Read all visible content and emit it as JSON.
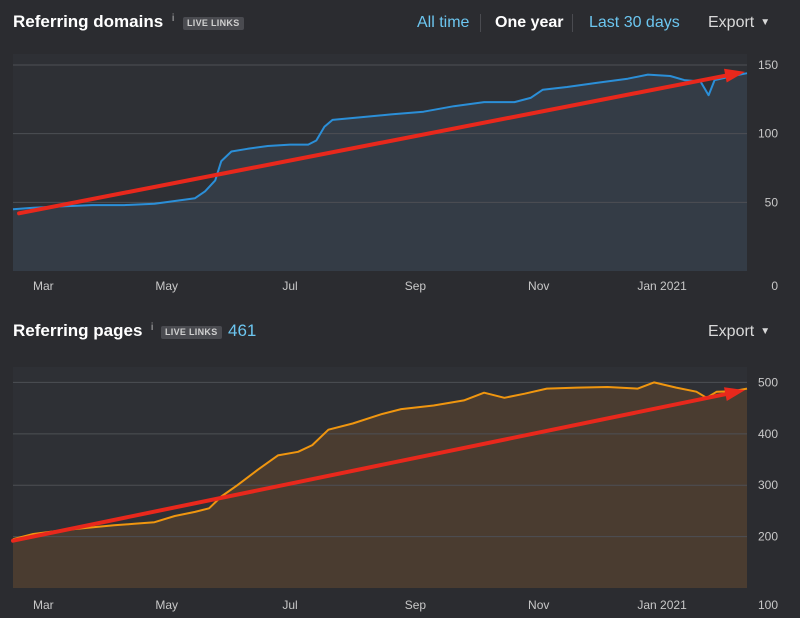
{
  "panels": {
    "domains": {
      "title": "Referring domains",
      "info": "i",
      "badge": "LIVE LINKS",
      "count": "",
      "ranges": [
        "All time",
        "One year",
        "Last 30 days"
      ],
      "active_range": "One year",
      "export_label": "Export"
    },
    "pages": {
      "title": "Referring pages",
      "info": "i",
      "badge": "LIVE LINKS",
      "count": "461",
      "export_label": "Export"
    }
  },
  "chart_data": [
    {
      "type": "area",
      "title": "Referring domains",
      "x_ticks": [
        "Mar",
        "May",
        "Jul",
        "Sep",
        "Nov",
        "Jan 2021"
      ],
      "x_range": [
        "2020-02-15",
        "2021-02-12"
      ],
      "y_ticks": [
        0,
        50,
        100,
        150
      ],
      "ylim": [
        0,
        158
      ],
      "grid": true,
      "series": [
        {
          "color": "#2b8fd8",
          "fill": "#343c46",
          "points": [
            [
              "2020-02-15",
              45
            ],
            [
              "2020-02-25",
              46
            ],
            [
              "2020-03-10",
              47
            ],
            [
              "2020-03-25",
              48
            ],
            [
              "2020-04-10",
              48
            ],
            [
              "2020-04-25",
              49
            ],
            [
              "2020-05-05",
              51
            ],
            [
              "2020-05-15",
              53
            ],
            [
              "2020-05-20",
              58
            ],
            [
              "2020-05-25",
              66
            ],
            [
              "2020-05-28",
              80
            ],
            [
              "2020-06-02",
              87
            ],
            [
              "2020-06-10",
              89
            ],
            [
              "2020-06-20",
              91
            ],
            [
              "2020-07-01",
              92
            ],
            [
              "2020-07-10",
              92
            ],
            [
              "2020-07-14",
              95
            ],
            [
              "2020-07-18",
              105
            ],
            [
              "2020-07-22",
              110
            ],
            [
              "2020-08-05",
              112
            ],
            [
              "2020-08-20",
              114
            ],
            [
              "2020-09-05",
              116
            ],
            [
              "2020-09-20",
              120
            ],
            [
              "2020-10-05",
              123
            ],
            [
              "2020-10-20",
              123
            ],
            [
              "2020-10-28",
              126
            ],
            [
              "2020-11-03",
              132
            ],
            [
              "2020-11-15",
              134
            ],
            [
              "2020-11-30",
              137
            ],
            [
              "2020-12-15",
              140
            ],
            [
              "2020-12-25",
              143
            ],
            [
              "2021-01-05",
              142
            ],
            [
              "2021-01-12",
              139
            ],
            [
              "2021-01-20",
              138
            ],
            [
              "2021-01-24",
              128
            ],
            [
              "2021-01-27",
              139
            ],
            [
              "2021-02-05",
              142
            ],
            [
              "2021-02-12",
              144
            ]
          ]
        }
      ],
      "trend_arrow": {
        "color": "#e8281c",
        "from": [
          "2020-02-18",
          42
        ],
        "to": [
          "2021-02-11",
          145
        ]
      }
    },
    {
      "type": "area",
      "title": "Referring pages",
      "x_ticks": [
        "Mar",
        "May",
        "Jul",
        "Sep",
        "Nov",
        "Jan 2021"
      ],
      "x_range": [
        "2020-02-15",
        "2021-02-12"
      ],
      "y_ticks": [
        100,
        200,
        300,
        400,
        500
      ],
      "ylim": [
        100,
        530
      ],
      "grid": true,
      "series": [
        {
          "color": "#f0960f",
          "fill": "#4a3c30",
          "points": [
            [
              "2020-02-15",
              195
            ],
            [
              "2020-02-25",
              205
            ],
            [
              "2020-03-10",
              212
            ],
            [
              "2020-03-25",
              218
            ],
            [
              "2020-04-05",
              222
            ],
            [
              "2020-04-15",
              225
            ],
            [
              "2020-04-25",
              228
            ],
            [
              "2020-05-05",
              240
            ],
            [
              "2020-05-15",
              248
            ],
            [
              "2020-05-22",
              255
            ],
            [
              "2020-05-28",
              278
            ],
            [
              "2020-06-05",
              300
            ],
            [
              "2020-06-15",
              330
            ],
            [
              "2020-06-25",
              358
            ],
            [
              "2020-07-05",
              365
            ],
            [
              "2020-07-12",
              378
            ],
            [
              "2020-07-20",
              408
            ],
            [
              "2020-08-01",
              420
            ],
            [
              "2020-08-15",
              438
            ],
            [
              "2020-08-25",
              448
            ],
            [
              "2020-09-10",
              455
            ],
            [
              "2020-09-25",
              465
            ],
            [
              "2020-10-05",
              480
            ],
            [
              "2020-10-15",
              470
            ],
            [
              "2020-10-25",
              478
            ],
            [
              "2020-11-05",
              488
            ],
            [
              "2020-11-20",
              490
            ],
            [
              "2020-12-05",
              491
            ],
            [
              "2020-12-20",
              488
            ],
            [
              "2020-12-28",
              500
            ],
            [
              "2021-01-08",
              490
            ],
            [
              "2021-01-18",
              482
            ],
            [
              "2021-01-23",
              470
            ],
            [
              "2021-01-28",
              482
            ],
            [
              "2021-02-05",
              483
            ],
            [
              "2021-02-12",
              488
            ]
          ]
        }
      ],
      "trend_arrow": {
        "color": "#e8281c",
        "from": [
          "2020-02-15",
          192
        ],
        "to": [
          "2021-02-11",
          485
        ]
      }
    }
  ]
}
